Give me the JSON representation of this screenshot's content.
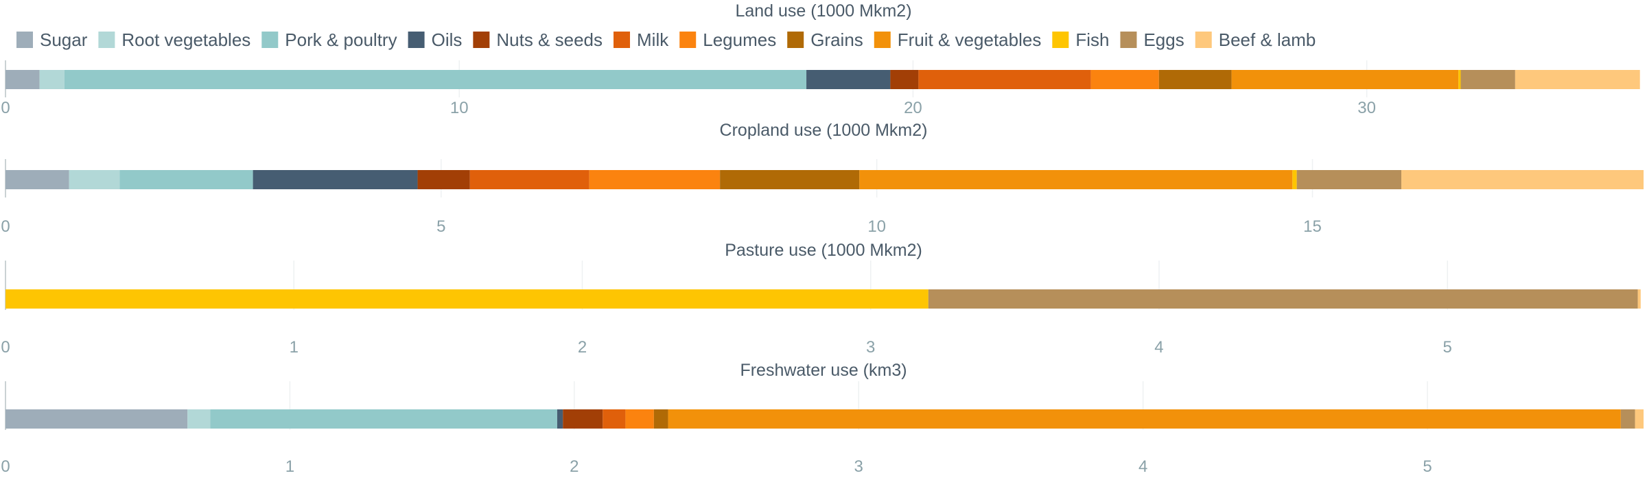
{
  "chart_data": {
    "type": "bar",
    "orientation": "horizontal",
    "stacked": true,
    "legend": {
      "placement": "top-left",
      "items": [
        {
          "name": "Sugar",
          "color": "#9eadb9"
        },
        {
          "name": "Root vegetables",
          "color": "#b2d8d7"
        },
        {
          "name": "Pork & poultry",
          "color": "#92c9c9"
        },
        {
          "name": "Oils",
          "color": "#465d72"
        },
        {
          "name": "Nuts & seeds",
          "color": "#a23f06"
        },
        {
          "name": "Milk",
          "color": "#e0600b"
        },
        {
          "name": "Legumes",
          "color": "#fb830f"
        },
        {
          "name": "Grains",
          "color": "#b06a06"
        },
        {
          "name": "Fruit & vegetables",
          "color": "#f2910a"
        },
        {
          "name": "Fish",
          "color": "#fec502"
        },
        {
          "name": "Eggs",
          "color": "#b68f5a"
        },
        {
          "name": "Beef & lamb",
          "color": "#fec87c"
        }
      ]
    },
    "panels": [
      {
        "title": "Land use (1000 Mkm2)",
        "xlim": [
          0,
          36.1
        ],
        "ticks": [
          0,
          10,
          20,
          30
        ],
        "tick_labels": [
          "0",
          "10",
          "20",
          "30"
        ],
        "values": [
          0.75,
          0.55,
          16.35,
          1.85,
          0.62,
          3.8,
          1.5,
          1.6,
          5.0,
          0.05,
          1.2,
          2.75
        ]
      },
      {
        "title": "Cropland use (1000 Mkm2)",
        "xlim": [
          0,
          18.8
        ],
        "ticks": [
          0,
          5,
          10,
          15
        ],
        "tick_labels": [
          "0",
          "5",
          "10",
          "15"
        ],
        "values": [
          0.73,
          0.58,
          1.53,
          1.89,
          0.6,
          1.37,
          1.5,
          1.6,
          4.97,
          0.05,
          1.2,
          2.78
        ]
      },
      {
        "title": "Pasture use (1000 Mkm2)",
        "xlim": [
          0,
          5.68
        ],
        "ticks": [
          0,
          1,
          2,
          3,
          4,
          5
        ],
        "tick_labels": [
          "0",
          "1",
          "2",
          "3",
          "4",
          "5"
        ],
        "values": [
          0,
          0,
          0,
          0,
          0,
          0,
          0,
          0,
          0,
          3.2,
          2.46,
          0.01
        ]
      },
      {
        "title": "Freshwater use (km3)",
        "xlim": [
          0,
          5.76
        ],
        "ticks": [
          0,
          1,
          2,
          3,
          4,
          5
        ],
        "tick_labels": [
          "0",
          "1",
          "2",
          "3",
          "4",
          "5"
        ],
        "values": [
          0.64,
          0.08,
          1.22,
          0.02,
          0.14,
          0.08,
          0.1,
          0.05,
          3.35,
          0,
          0.05,
          0.03
        ]
      }
    ],
    "grid": true
  }
}
